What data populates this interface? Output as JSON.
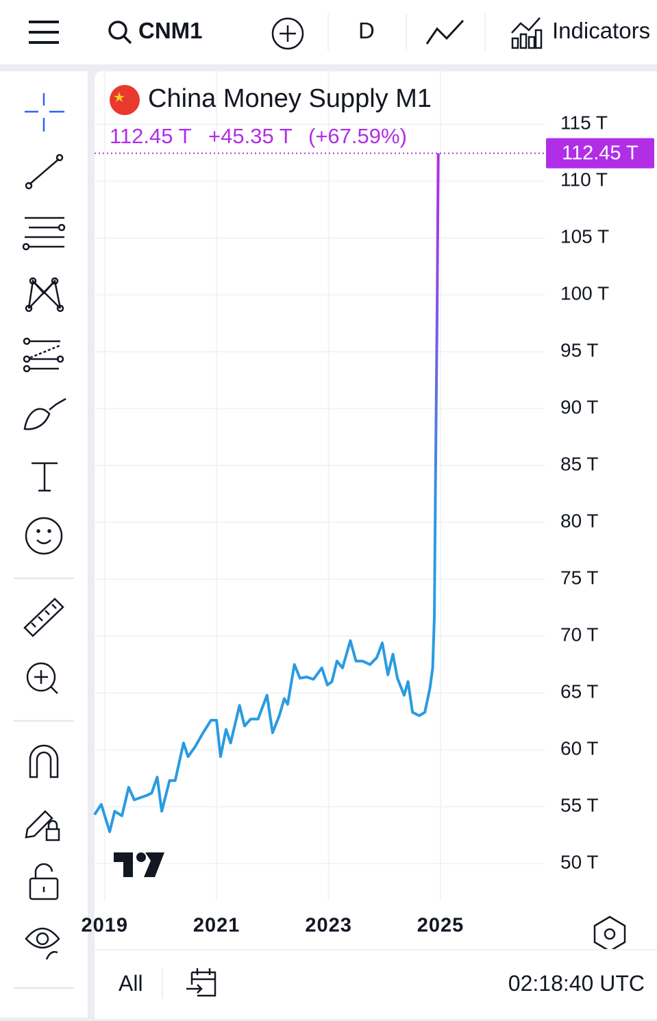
{
  "toolbar": {
    "symbol": "CNM1",
    "interval": "D",
    "indicators": "Indicators"
  },
  "legend": {
    "last": "112.45 T",
    "change": "+45.35 T",
    "change_percent": "(+67.59%)"
  },
  "bottom_bar": {
    "range": "All",
    "clock": "02:18:40 UTC"
  },
  "chart_data": {
    "type": "line",
    "title": "China Money Supply M1",
    "x": [
      2018.82,
      2018.94,
      2019.09,
      2019.18,
      2019.31,
      2019.43,
      2019.53,
      2019.64,
      2019.76,
      2019.84,
      2019.94,
      2020.02,
      2020.16,
      2020.26,
      2020.41,
      2020.49,
      2020.62,
      2020.76,
      2020.9,
      2021.0,
      2021.07,
      2021.17,
      2021.25,
      2021.41,
      2021.5,
      2021.61,
      2021.74,
      2021.9,
      2022.0,
      2022.12,
      2022.21,
      2022.27,
      2022.39,
      2022.49,
      2022.61,
      2022.73,
      2022.88,
      2022.98,
      2023.06,
      2023.15,
      2023.25,
      2023.39,
      2023.49,
      2023.61,
      2023.74,
      2023.86,
      2023.96,
      2024.06,
      2024.15,
      2024.23,
      2024.35,
      2024.42,
      2024.5,
      2024.62,
      2024.72,
      2024.81,
      2024.86,
      2024.89,
      2024.91,
      2024.94,
      2024.96
    ],
    "series": [
      {
        "color": "#2a9be0",
        "color_top": "#b12ee6",
        "values": [
          54.3,
          55.2,
          52.8,
          54.6,
          54.2,
          56.7,
          55.6,
          55.8,
          56.0,
          56.2,
          57.6,
          54.6,
          57.3,
          57.3,
          60.6,
          59.4,
          60.3,
          61.5,
          62.6,
          62.6,
          59.4,
          61.8,
          60.6,
          63.9,
          62.1,
          62.7,
          62.7,
          64.8,
          61.5,
          63.0,
          64.5,
          64.0,
          67.5,
          66.3,
          66.4,
          66.2,
          67.2,
          65.7,
          66.0,
          67.8,
          67.2,
          69.6,
          67.8,
          67.8,
          67.5,
          68.1,
          69.4,
          66.6,
          68.4,
          66.3,
          64.8,
          66.0,
          63.3,
          63.0,
          63.3,
          65.4,
          67.2,
          71.7,
          83.8,
          98.9,
          112.45
        ]
      }
    ],
    "last_value": {
      "value": 112.45,
      "label": "112.45 T"
    },
    "xlim": [
      2018.82,
      2026.86
    ],
    "xticks": [
      2019,
      2021,
      2023,
      2025
    ],
    "ylim": [
      46.7,
      119.9
    ],
    "yticks": [
      {
        "value": 50,
        "label": "50 T"
      },
      {
        "value": 55,
        "label": "55 T"
      },
      {
        "value": 60,
        "label": "60 T"
      },
      {
        "value": 65,
        "label": "65 T"
      },
      {
        "value": 70,
        "label": "70 T"
      },
      {
        "value": 75,
        "label": "75 T"
      },
      {
        "value": 80,
        "label": "80 T"
      },
      {
        "value": 85,
        "label": "85 T"
      },
      {
        "value": 90,
        "label": "90 T"
      },
      {
        "value": 95,
        "label": "95 T"
      },
      {
        "value": 100,
        "label": "100 T"
      },
      {
        "value": 105,
        "label": "105 T"
      },
      {
        "value": 110,
        "label": "110 T"
      },
      {
        "value": 115,
        "label": "115 T"
      }
    ],
    "grid": true
  }
}
